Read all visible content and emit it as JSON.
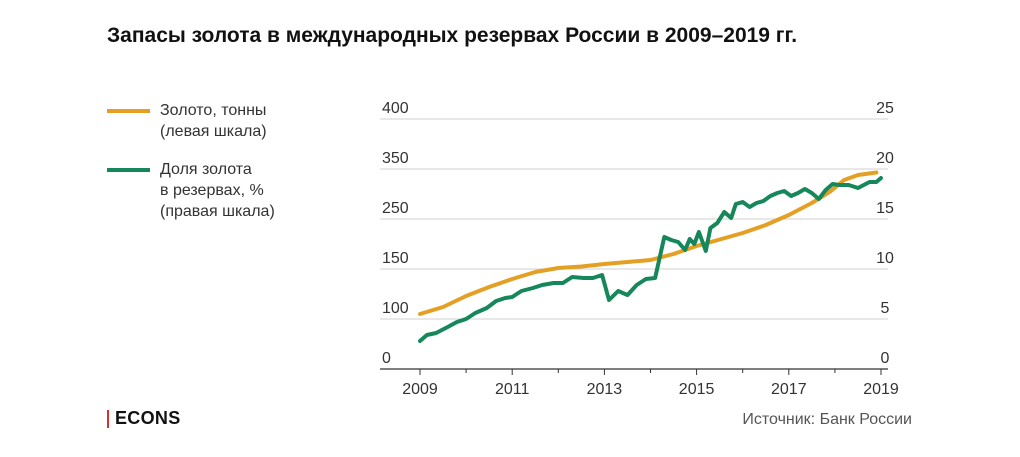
{
  "title": "Запасы золота в международных резервах России в 2009–2019 гг.",
  "legend": [
    {
      "lines": [
        "Золото, тонны",
        "(левая шкала)"
      ],
      "color": "#E4A024"
    },
    {
      "lines": [
        "Доля золота",
        "в резервах, %",
        "(правая шкала)"
      ],
      "color": "#15875A"
    }
  ],
  "logo": "ECONS",
  "source": "Источник: Банк России",
  "chart_data": {
    "type": "line",
    "title": "Запасы золота в международных резервах России в 2009–2019 гг.",
    "left_axis": {
      "ticks": [
        "0",
        "100",
        "150",
        "250",
        "350",
        "400"
      ]
    },
    "right_axis": {
      "ticks": [
        "0",
        "5",
        "10",
        "15",
        "20",
        "25"
      ]
    },
    "x_ticks": [
      "2009",
      "2011",
      "2013",
      "2015",
      "2017",
      "2019"
    ],
    "grid": "horizontal",
    "series": [
      {
        "name": "Золото, тонны",
        "axis": "left",
        "color": "#E4A024",
        "x": [
          2009.0,
          2009.5,
          2010.0,
          2010.5,
          2011.0,
          2011.5,
          2012.0,
          2012.5,
          2013.0,
          2013.5,
          2014.0,
          2014.5,
          2015.0,
          2015.5,
          2016.0,
          2016.5,
          2017.0,
          2017.5,
          2017.9,
          2018.2,
          2018.5,
          2018.9
        ],
        "values": [
          105,
          112,
          123,
          132,
          140,
          147,
          152,
          155,
          160,
          164,
          168,
          180,
          196,
          209,
          222,
          238,
          258,
          282,
          305,
          328,
          338,
          343
        ]
      },
      {
        "name": "Доля золота в резервах, %",
        "axis": "right",
        "color": "#15875A",
        "x": [
          2009.0,
          2009.15,
          2009.35,
          2009.6,
          2009.8,
          2010.0,
          2010.2,
          2010.45,
          2010.65,
          2010.85,
          2011.0,
          2011.2,
          2011.45,
          2011.65,
          2011.9,
          2012.1,
          2012.3,
          2012.55,
          2012.75,
          2012.95,
          2013.1,
          2013.3,
          2013.5,
          2013.7,
          2013.9,
          2014.1,
          2014.3,
          2014.45,
          2014.6,
          2014.75,
          2014.85,
          2014.95,
          2015.05,
          2015.2,
          2015.3,
          2015.45,
          2015.6,
          2015.75,
          2015.85,
          2016.0,
          2016.15,
          2016.3,
          2016.45,
          2016.6,
          2016.75,
          2016.9,
          2017.05,
          2017.2,
          2017.35,
          2017.5,
          2017.65,
          2017.8,
          2017.95,
          2018.1,
          2018.3,
          2018.5,
          2018.75,
          2018.9,
          2019.0
        ],
        "values": [
          2.8,
          3.4,
          3.6,
          4.2,
          4.7,
          5.0,
          5.6,
          6.1,
          6.8,
          7.1,
          7.2,
          7.8,
          8.1,
          8.4,
          8.6,
          8.6,
          9.2,
          9.1,
          9.1,
          9.4,
          6.9,
          7.8,
          7.4,
          8.4,
          9.0,
          9.1,
          13.2,
          12.9,
          12.7,
          11.9,
          13.0,
          12.5,
          13.7,
          11.8,
          14.1,
          14.6,
          15.7,
          15.1,
          16.5,
          16.7,
          16.2,
          16.6,
          16.8,
          17.3,
          17.6,
          17.8,
          17.3,
          17.6,
          18.0,
          17.6,
          17.0,
          17.9,
          18.5,
          18.4,
          18.4,
          18.1,
          18.7,
          18.7,
          19.1
        ]
      }
    ]
  }
}
